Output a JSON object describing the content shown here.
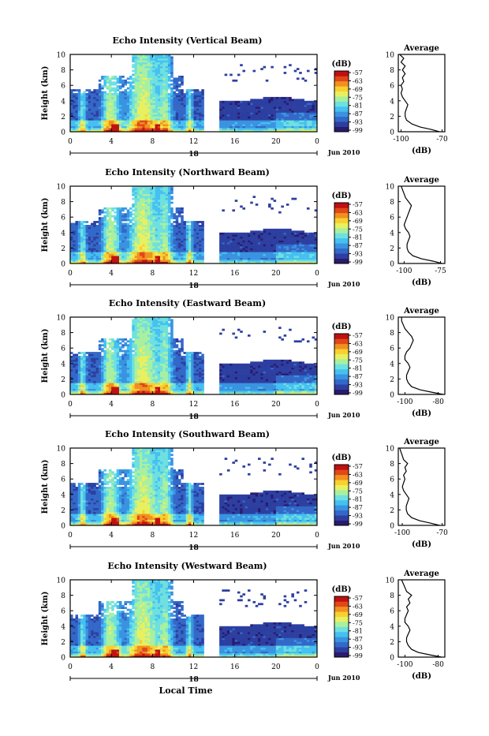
{
  "figure": {
    "xlabel": "Local Time",
    "date_label": "Jun 2010",
    "x_ticks": [
      "0",
      "4",
      "8",
      "12",
      "16",
      "20",
      "0"
    ],
    "day_marker": "18"
  },
  "colorbar": {
    "unit": "(dB)",
    "ticks": [
      "-57",
      "-63",
      "-69",
      "-75",
      "-81",
      "-87",
      "-93",
      "-99"
    ],
    "colors": [
      "#2a1a6e",
      "#2c3fa0",
      "#3368c8",
      "#3a93e0",
      "#45c0f0",
      "#6ee0e0",
      "#a8f0a0",
      "#e8f060",
      "#f8d030",
      "#f09020",
      "#e04818",
      "#c01010"
    ]
  },
  "chart_data": [
    {
      "type": "heatmap",
      "title": "Echo Intensity (Vertical Beam)",
      "ylabel": "Height (km)",
      "xlabel": "",
      "ylim": [
        0,
        10
      ],
      "y_ticks": [
        "0",
        "2",
        "4",
        "6",
        "8",
        "10"
      ],
      "color_scale": {
        "unit": "dB",
        "range": [
          -99,
          -57
        ]
      },
      "data_gap_hours": [
        12.9,
        14.5
      ],
      "average_profile": {
        "title": "Average",
        "xlabel": "(dB)",
        "x_ticks": [
          "-100",
          "-70"
        ],
        "xlim": [
          -102,
          -68
        ],
        "ylim": [
          0,
          10
        ],
        "y_ticks": [
          "0",
          "2",
          "4",
          "6",
          "8",
          "10"
        ],
        "height_km": [
          0,
          0.3,
          0.6,
          1.0,
          1.5,
          2.0,
          2.5,
          3.0,
          3.5,
          4.0,
          4.5,
          5.0,
          5.5,
          6.0,
          6.5,
          7.0,
          7.5,
          8.0,
          8.5,
          9.0,
          9.5,
          10.0
        ],
        "values_db": [
          -72,
          -78,
          -86,
          -92,
          -96,
          -97,
          -97,
          -96,
          -95,
          -97,
          -99,
          -100,
          -99,
          -100,
          -98,
          -99,
          -97,
          -99,
          -97,
          -100,
          -98,
          -101
        ]
      }
    },
    {
      "type": "heatmap",
      "title": "Echo Intensity (Northward Beam)",
      "ylabel": "Height (km)",
      "xlabel": "",
      "ylim": [
        0,
        10
      ],
      "y_ticks": [
        "0",
        "2",
        "4",
        "6",
        "8",
        "10"
      ],
      "color_scale": {
        "unit": "dB",
        "range": [
          -99,
          -57
        ]
      },
      "data_gap_hours": [
        12.9,
        14.5
      ],
      "average_profile": {
        "title": "Average",
        "xlabel": "(dB)",
        "x_ticks": [
          "-100",
          "-75"
        ],
        "xlim": [
          -104,
          -72
        ],
        "ylim": [
          0,
          10
        ],
        "y_ticks": [
          "0",
          "2",
          "4",
          "6",
          "8",
          "10"
        ],
        "height_km": [
          0,
          0.3,
          0.6,
          1.0,
          1.5,
          2.0,
          2.5,
          3.0,
          3.5,
          4.0,
          4.5,
          5.0,
          5.5,
          6.0,
          6.5,
          7.0,
          7.5,
          8.0,
          8.5,
          9.0,
          9.5,
          10.0
        ],
        "values_db": [
          -74,
          -80,
          -88,
          -94,
          -97,
          -98,
          -98,
          -97,
          -96,
          -97,
          -99,
          -100,
          -99,
          -98,
          -97,
          -96,
          -95,
          -97,
          -99,
          -100,
          -101,
          -102
        ]
      }
    },
    {
      "type": "heatmap",
      "title": "Echo Intensity (Eastward Beam)",
      "ylabel": "Height (km)",
      "xlabel": "",
      "ylim": [
        0,
        10
      ],
      "y_ticks": [
        "0",
        "2",
        "4",
        "6",
        "8",
        "10"
      ],
      "color_scale": {
        "unit": "dB",
        "range": [
          -99,
          -57
        ]
      },
      "data_gap_hours": [
        12.9,
        14.5
      ],
      "average_profile": {
        "title": "Average",
        "xlabel": "(dB)",
        "x_ticks": [
          "-100",
          "-80"
        ],
        "xlim": [
          -104,
          -76
        ],
        "ylim": [
          0,
          10
        ],
        "y_ticks": [
          "0",
          "2",
          "4",
          "6",
          "8",
          "10"
        ],
        "height_km": [
          0,
          0.3,
          0.6,
          1.0,
          1.5,
          2.0,
          2.5,
          3.0,
          3.5,
          4.0,
          4.5,
          5.0,
          5.5,
          6.0,
          6.5,
          7.0,
          7.5,
          8.0,
          8.5,
          9.0,
          9.5,
          10.0
        ],
        "values_db": [
          -77,
          -84,
          -91,
          -96,
          -98,
          -99,
          -99,
          -98,
          -97,
          -98,
          -100,
          -100,
          -99,
          -97,
          -96,
          -95,
          -96,
          -98,
          -100,
          -101,
          -102,
          -102
        ]
      }
    },
    {
      "type": "heatmap",
      "title": "Echo Intensity (Southward Beam)",
      "ylabel": "Height (km)",
      "xlabel": "",
      "ylim": [
        0,
        10
      ],
      "y_ticks": [
        "0",
        "2",
        "4",
        "6",
        "8",
        "10"
      ],
      "color_scale": {
        "unit": "dB",
        "range": [
          -99,
          -57
        ]
      },
      "data_gap_hours": [
        12.9,
        14.5
      ],
      "average_profile": {
        "title": "Average",
        "xlabel": "(dB)",
        "x_ticks": [
          "-100",
          "-70"
        ],
        "xlim": [
          -103,
          -68
        ],
        "ylim": [
          0,
          10
        ],
        "y_ticks": [
          "0",
          "2",
          "4",
          "6",
          "8",
          "10"
        ],
        "height_km": [
          0,
          0.3,
          0.6,
          1.0,
          1.5,
          2.0,
          2.5,
          3.0,
          3.5,
          4.0,
          4.5,
          5.0,
          5.5,
          6.0,
          6.5,
          7.0,
          7.5,
          8.0,
          8.5,
          9.0,
          9.5,
          10.0
        ],
        "values_db": [
          -72,
          -79,
          -87,
          -93,
          -96,
          -97,
          -97,
          -96,
          -95,
          -97,
          -99,
          -100,
          -99,
          -98,
          -99,
          -97,
          -98,
          -96,
          -99,
          -100,
          -101,
          -102
        ]
      }
    },
    {
      "type": "heatmap",
      "title": "Echo Intensity (Westward Beam)",
      "ylabel": "Height (km)",
      "xlabel": "Local Time",
      "ylim": [
        0,
        10
      ],
      "y_ticks": [
        "0",
        "2",
        "4",
        "6",
        "8",
        "10"
      ],
      "color_scale": {
        "unit": "dB",
        "range": [
          -99,
          -57
        ]
      },
      "data_gap_hours": [
        12.9,
        14.5
      ],
      "average_profile": {
        "title": "Average",
        "xlabel": "(dB)",
        "x_ticks": [
          "-100",
          "-80"
        ],
        "xlim": [
          -104,
          -76
        ],
        "ylim": [
          0,
          10
        ],
        "y_ticks": [
          "0",
          "2",
          "4",
          "6",
          "8",
          "10"
        ],
        "height_km": [
          0,
          0.3,
          0.6,
          1.0,
          1.5,
          2.0,
          2.5,
          3.0,
          3.5,
          4.0,
          4.5,
          5.0,
          5.5,
          6.0,
          6.5,
          7.0,
          7.5,
          8.0,
          8.5,
          9.0,
          9.5,
          10.0
        ],
        "values_db": [
          -78,
          -85,
          -92,
          -96,
          -98,
          -99,
          -99,
          -98,
          -97,
          -98,
          -100,
          -100,
          -99,
          -98,
          -99,
          -97,
          -98,
          -96,
          -99,
          -100,
          -101,
          -102
        ]
      }
    }
  ]
}
